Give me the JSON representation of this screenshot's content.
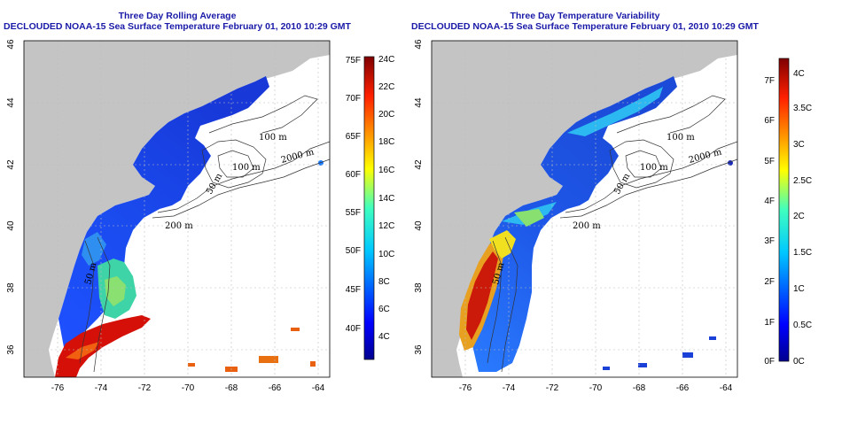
{
  "panels": [
    {
      "title_line1": "Three Day Rolling Average",
      "title_line2": "DECLOUDED NOAA-15 Sea Surface Temperature February 01, 2010 10:29 GMT",
      "x_ticks": [
        "-76",
        "-74",
        "-72",
        "-70",
        "-68",
        "-66",
        "-64"
      ],
      "y_ticks": [
        "36",
        "38",
        "40",
        "42",
        "44",
        "46"
      ],
      "colorbar": {
        "left_labels": [
          "40F",
          "45F",
          "50F",
          "55F",
          "60F",
          "65F",
          "70F",
          "75F"
        ],
        "right_labels": [
          "4C",
          "6C",
          "8C",
          "10C",
          "12C",
          "14C",
          "16C",
          "18C",
          "20C",
          "22C",
          "24C"
        ]
      },
      "contour_labels": [
        "100 m",
        "100 m",
        "50 m",
        "2000 m",
        "200 m",
        "50 m"
      ]
    },
    {
      "title_line1": "Three Day Temperature Variability",
      "title_line2": "DECLOUDED NOAA-15 Sea Surface Temperature February 01, 2010 10:29 GMT",
      "x_ticks": [
        "-76",
        "-74",
        "-72",
        "-70",
        "-68",
        "-66",
        "-64"
      ],
      "y_ticks": [
        "36",
        "38",
        "40",
        "42",
        "44",
        "46"
      ],
      "colorbar": {
        "left_labels": [
          "0F",
          "1F",
          "2F",
          "3F",
          "4F",
          "5F",
          "6F",
          "7F"
        ],
        "right_labels": [
          "0C",
          "0.5C",
          "1C",
          "1.5C",
          "2C",
          "2.5C",
          "3C",
          "3.5C",
          "4C"
        ]
      },
      "contour_labels": [
        "100 m",
        "100 m",
        "50 m",
        "2000 m",
        "200 m",
        "50 m"
      ]
    }
  ],
  "colors": {
    "land": "#c4c4c4",
    "no_data": "#ffffff",
    "title": "#1a1aa8"
  }
}
